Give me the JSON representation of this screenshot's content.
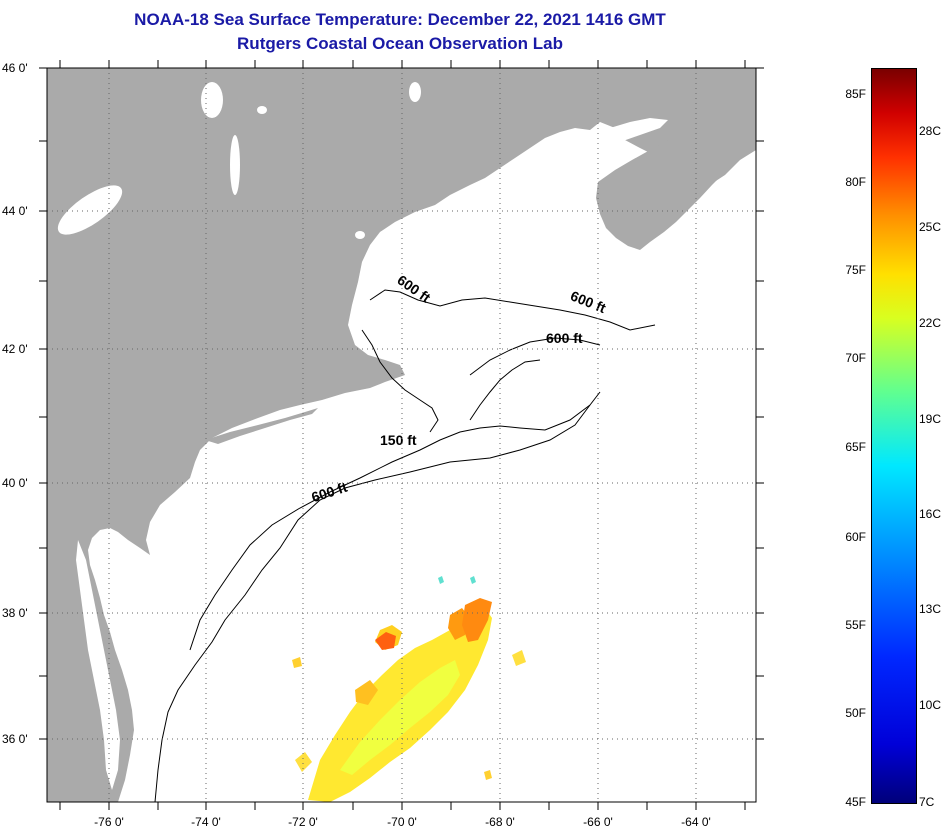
{
  "title": {
    "line1": "NOAA-18 Sea Surface Temperature:  December 22, 2021 1416 GMT",
    "line2": "Rutgers Coastal Ocean Observation Lab"
  },
  "map": {
    "lat_labels": [
      "46 0'",
      "44 0'",
      "42 0'",
      "40 0'",
      "38 0'",
      "36 0'"
    ],
    "lon_labels": [
      "-76 0'",
      "-74 0'",
      "-72 0'",
      "-70 0'",
      "-68 0'",
      "-66 0'",
      "-64 0'"
    ],
    "contour_labels": [
      "600 ft",
      "600 ft",
      "600 ft",
      "150 ft",
      "600 ft"
    ],
    "colors": {
      "land": "#aaaaaa",
      "ocean": "#ffffff",
      "grid": "#666666"
    }
  },
  "colorbar": {
    "fahrenheit": [
      "85F",
      "80F",
      "75F",
      "70F",
      "65F",
      "60F",
      "55F",
      "50F",
      "45F"
    ],
    "celsius": [
      "28C",
      "25C",
      "22C",
      "19C",
      "16C",
      "13C",
      "10C",
      "7C"
    ]
  }
}
